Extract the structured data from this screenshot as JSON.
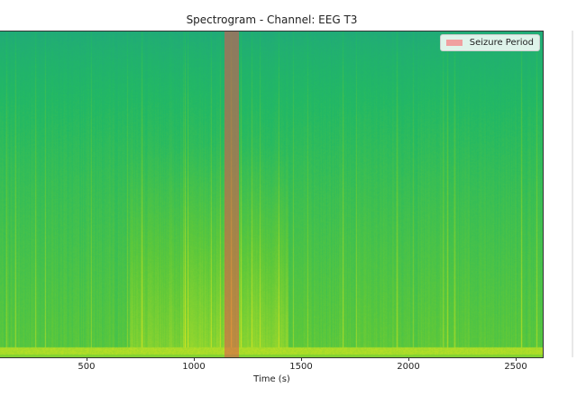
{
  "chart_data": {
    "type": "heatmap",
    "title": "Spectrogram - Channel: EEG T3",
    "xlabel": "Time (s)",
    "ylabel": "",
    "xticks": [
      500,
      1000,
      1500,
      2000,
      2500
    ],
    "xlim": [
      97,
      2630
    ],
    "grid": false,
    "legend": {
      "label": "Seizure Period",
      "placement": "top-right",
      "color": "#f0a0a0"
    },
    "seizure_period": [
      1145,
      1212
    ],
    "colormap": [
      "#21808a",
      "#1fa087",
      "#22b865",
      "#5ec83a",
      "#a5db2a",
      "#e0e81e"
    ],
    "description_of_intensity": "higher broadband power 700-1450 s and low-frequency band at bottom"
  }
}
